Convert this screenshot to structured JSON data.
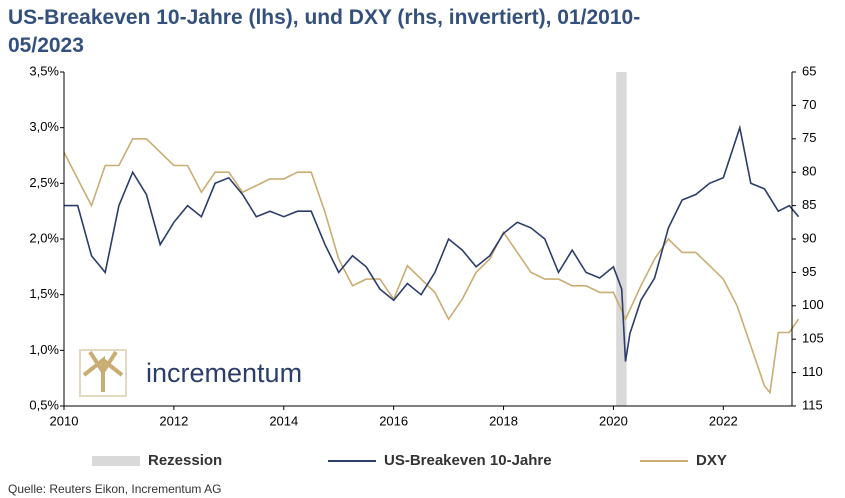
{
  "chart_data": {
    "type": "line",
    "title": [
      "US-Breakeven 10-Jahre (lhs), und DXY (rhs, invertiert), 01/2010-",
      "05/2023"
    ],
    "logo": "incrementum",
    "source": "Quelle: Reuters Eikon, Incrementum AG",
    "xlim": [
      2010,
      2023.25
    ],
    "xticks": [
      2010,
      2012,
      2014,
      2016,
      2018,
      2020,
      2022
    ],
    "ylim": [
      0.5,
      3.5
    ],
    "yticks": [
      {
        "value": 0.5,
        "label": "0,5%"
      },
      {
        "value": 1.0,
        "label": "1,0%"
      },
      {
        "value": 1.5,
        "label": "1,5%"
      },
      {
        "value": 2.0,
        "label": "2,0%"
      },
      {
        "value": 2.5,
        "label": "2,5%"
      },
      {
        "value": 3.0,
        "label": "3,0%"
      },
      {
        "value": 3.5,
        "label": "3,5%"
      }
    ],
    "y2lim": [
      65,
      115
    ],
    "y2_inverted": true,
    "y2ticks": [
      65,
      70,
      75,
      80,
      85,
      90,
      95,
      100,
      105,
      110,
      115
    ],
    "bands": [
      {
        "name": "Rezession",
        "color": "#d9d9d9",
        "x": [
          2020.05,
          2020.24
        ]
      }
    ],
    "series": [
      {
        "name": "US-Breakeven 10-Jahre",
        "color": "#2b3d6b",
        "axis": "y",
        "x": [
          2010.0,
          2010.25,
          2010.5,
          2010.75,
          2011.0,
          2011.25,
          2011.5,
          2011.75,
          2012.0,
          2012.25,
          2012.5,
          2012.75,
          2013.0,
          2013.25,
          2013.5,
          2013.75,
          2014.0,
          2014.25,
          2014.5,
          2014.75,
          2015.0,
          2015.25,
          2015.5,
          2015.75,
          2016.0,
          2016.25,
          2016.5,
          2016.75,
          2017.0,
          2017.25,
          2017.5,
          2017.75,
          2018.0,
          2018.25,
          2018.5,
          2018.75,
          2019.0,
          2019.25,
          2019.5,
          2019.75,
          2020.0,
          2020.15,
          2020.22,
          2020.3,
          2020.5,
          2020.75,
          2021.0,
          2021.25,
          2021.5,
          2021.75,
          2022.0,
          2022.3,
          2022.5,
          2022.75,
          2023.0,
          2023.2,
          2023.37
        ],
        "values": [
          2.3,
          2.3,
          1.85,
          1.7,
          2.3,
          2.6,
          2.4,
          1.95,
          2.15,
          2.3,
          2.2,
          2.5,
          2.55,
          2.4,
          2.2,
          2.25,
          2.2,
          2.25,
          2.25,
          1.95,
          1.7,
          1.85,
          1.75,
          1.55,
          1.45,
          1.6,
          1.5,
          1.7,
          2.0,
          1.9,
          1.75,
          1.85,
          2.05,
          2.15,
          2.1,
          2.0,
          1.7,
          1.9,
          1.7,
          1.65,
          1.75,
          1.55,
          0.9,
          1.15,
          1.45,
          1.65,
          2.1,
          2.35,
          2.4,
          2.5,
          2.55,
          3.0,
          2.5,
          2.45,
          2.25,
          2.3,
          2.2
        ]
      },
      {
        "name": "DXY",
        "color": "#c9ad72",
        "axis": "y2",
        "x": [
          2010.0,
          2010.25,
          2010.5,
          2010.75,
          2011.0,
          2011.25,
          2011.5,
          2011.75,
          2012.0,
          2012.25,
          2012.5,
          2012.75,
          2013.0,
          2013.25,
          2013.5,
          2013.75,
          2014.0,
          2014.25,
          2014.5,
          2014.75,
          2015.0,
          2015.25,
          2015.5,
          2015.75,
          2016.0,
          2016.25,
          2016.5,
          2016.75,
          2017.0,
          2017.25,
          2017.5,
          2017.75,
          2018.0,
          2018.25,
          2018.5,
          2018.75,
          2019.0,
          2019.25,
          2019.5,
          2019.75,
          2020.0,
          2020.22,
          2020.5,
          2020.75,
          2021.0,
          2021.25,
          2021.5,
          2021.75,
          2022.0,
          2022.25,
          2022.5,
          2022.75,
          2022.85,
          2023.0,
          2023.2,
          2023.37
        ],
        "values": [
          77,
          81,
          85,
          79,
          79,
          75,
          75,
          77,
          79,
          79,
          83,
          80,
          80,
          83,
          82,
          81,
          81,
          80,
          80,
          86,
          93,
          97,
          96,
          96,
          99,
          94,
          96,
          98,
          102,
          99,
          95,
          93,
          89,
          92,
          95,
          96,
          96,
          97,
          97,
          98,
          98,
          102,
          97,
          93,
          90,
          92,
          92,
          94,
          96,
          100,
          106,
          112,
          113,
          104,
          104,
          102
        ]
      }
    ]
  }
}
